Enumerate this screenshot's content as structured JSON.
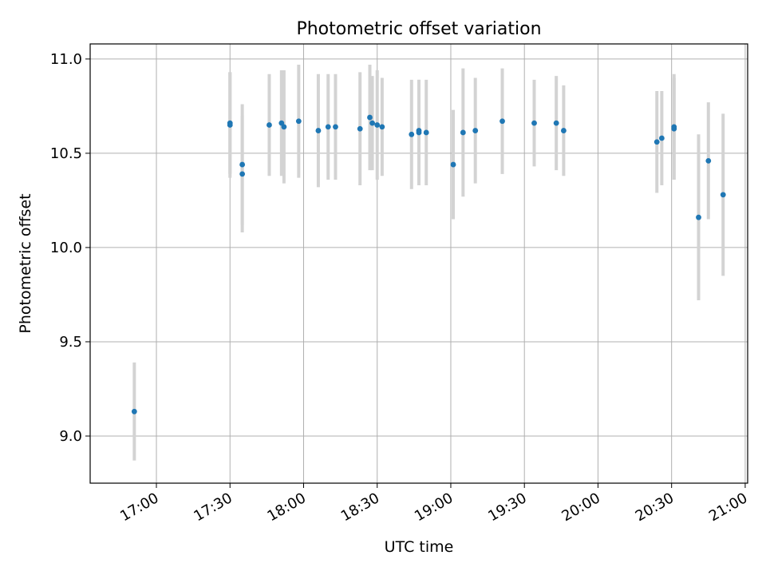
{
  "chart_data": {
    "type": "scatter",
    "title": "Photometric offset variation",
    "xlabel": "UTC time",
    "ylabel": "Photometric offset",
    "grid": true,
    "colors": {
      "point": "#1f77b4",
      "errorbar": "#d3d3d3",
      "grid": "#b0b0b0"
    },
    "xlim": [
      "16:33",
      "21:01"
    ],
    "ylim": [
      8.75,
      11.08
    ],
    "x_ticks": [
      "17:00",
      "17:30",
      "18:00",
      "18:30",
      "19:00",
      "19:30",
      "20:00",
      "20:30",
      "21:00"
    ],
    "y_ticks": [
      9.0,
      9.5,
      10.0,
      10.5,
      11.0
    ],
    "points": [
      {
        "x": "16:51",
        "y": 9.13,
        "err": 0.26
      },
      {
        "x": "17:30",
        "y": 10.65,
        "err": 0.28
      },
      {
        "x": "17:30",
        "y": 10.66,
        "err": 0.27
      },
      {
        "x": "17:35",
        "y": 10.39,
        "err": 0.31
      },
      {
        "x": "17:35",
        "y": 10.44,
        "err": 0.32
      },
      {
        "x": "17:46",
        "y": 10.65,
        "err": 0.27
      },
      {
        "x": "17:51",
        "y": 10.66,
        "err": 0.28
      },
      {
        "x": "17:52",
        "y": 10.64,
        "err": 0.3
      },
      {
        "x": "17:58",
        "y": 10.67,
        "err": 0.3
      },
      {
        "x": "18:06",
        "y": 10.62,
        "err": 0.3
      },
      {
        "x": "18:10",
        "y": 10.64,
        "err": 0.28
      },
      {
        "x": "18:13",
        "y": 10.64,
        "err": 0.28
      },
      {
        "x": "18:23",
        "y": 10.63,
        "err": 0.3
      },
      {
        "x": "18:27",
        "y": 10.69,
        "err": 0.28
      },
      {
        "x": "18:28",
        "y": 10.66,
        "err": 0.25
      },
      {
        "x": "18:30",
        "y": 10.65,
        "err": 0.29
      },
      {
        "x": "18:32",
        "y": 10.64,
        "err": 0.26
      },
      {
        "x": "18:44",
        "y": 10.6,
        "err": 0.29
      },
      {
        "x": "18:47",
        "y": 10.61,
        "err": 0.28
      },
      {
        "x": "18:47",
        "y": 10.62,
        "err": 0.27
      },
      {
        "x": "18:50",
        "y": 10.61,
        "err": 0.28
      },
      {
        "x": "19:01",
        "y": 10.44,
        "err": 0.29
      },
      {
        "x": "19:05",
        "y": 10.61,
        "err": 0.34
      },
      {
        "x": "19:10",
        "y": 10.62,
        "err": 0.28
      },
      {
        "x": "19:21",
        "y": 10.67,
        "err": 0.28
      },
      {
        "x": "19:34",
        "y": 10.66,
        "err": 0.23
      },
      {
        "x": "19:43",
        "y": 10.66,
        "err": 0.25
      },
      {
        "x": "19:46",
        "y": 10.62,
        "err": 0.24
      },
      {
        "x": "20:24",
        "y": 10.56,
        "err": 0.27
      },
      {
        "x": "20:26",
        "y": 10.58,
        "err": 0.25
      },
      {
        "x": "20:31",
        "y": 10.63,
        "err": 0.27
      },
      {
        "x": "20:31",
        "y": 10.64,
        "err": 0.28
      },
      {
        "x": "20:41",
        "y": 10.16,
        "err": 0.44
      },
      {
        "x": "20:45",
        "y": 10.46,
        "err": 0.31
      },
      {
        "x": "20:51",
        "y": 10.28,
        "err": 0.43
      }
    ]
  }
}
